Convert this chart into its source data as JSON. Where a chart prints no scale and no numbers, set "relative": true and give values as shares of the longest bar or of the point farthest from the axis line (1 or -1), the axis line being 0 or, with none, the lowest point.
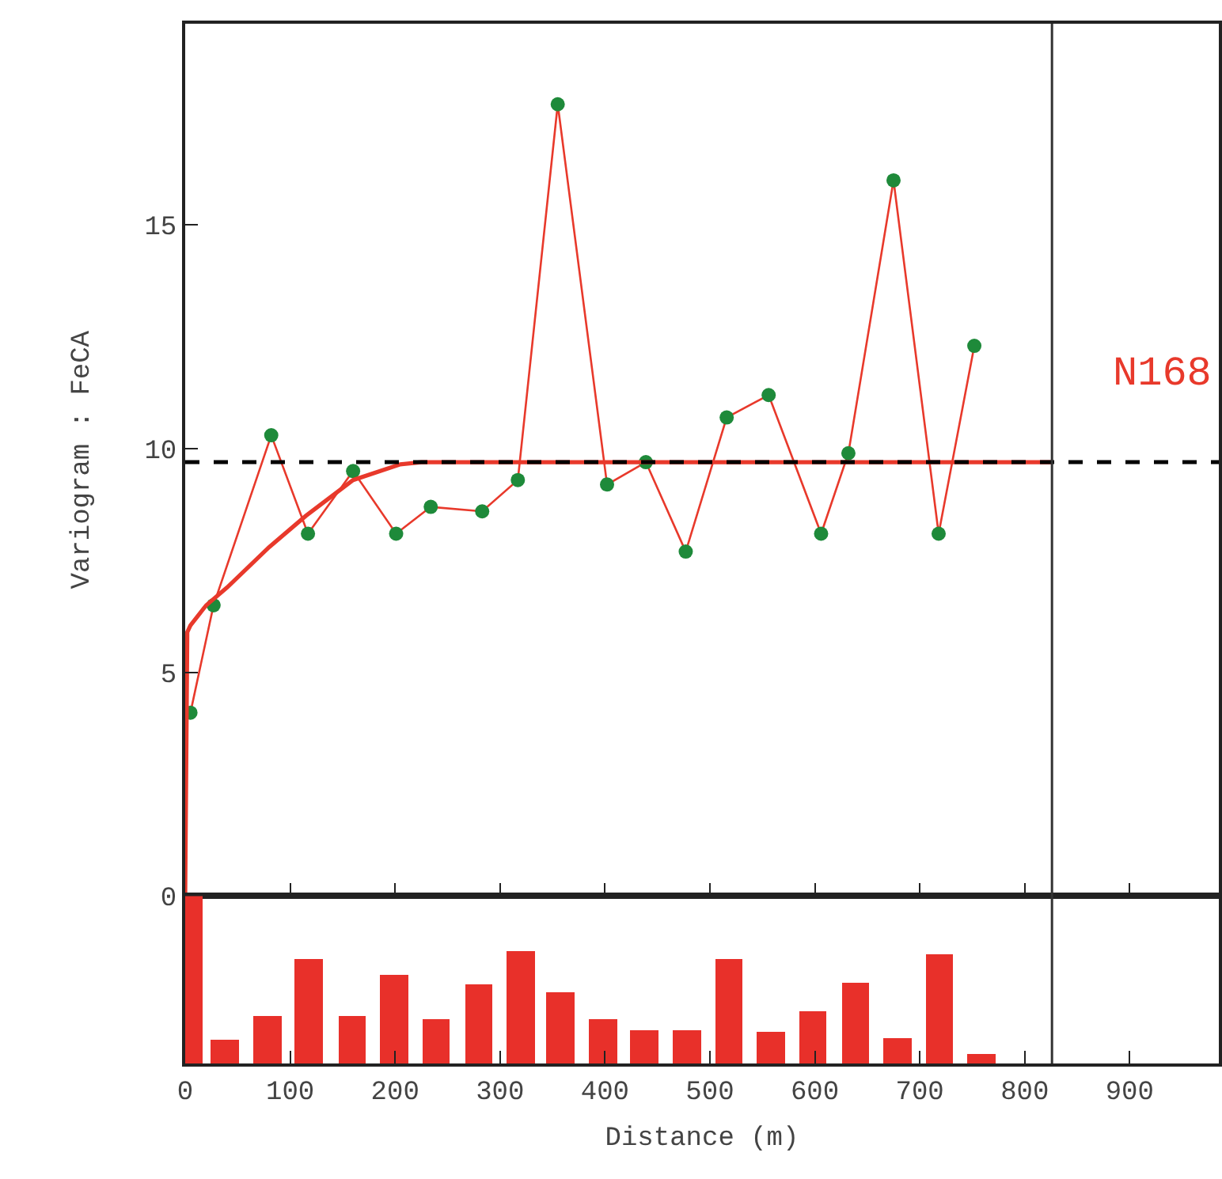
{
  "chart_data": [
    {
      "type": "line",
      "ylabel": "Variogram : FeCA",
      "xlim": [
        0,
        985
      ],
      "xticks": [
        0,
        100,
        200,
        300,
        400,
        500,
        600,
        700,
        800,
        900
      ],
      "ylim": [
        0,
        19.5
      ],
      "yticks": [
        0,
        5,
        10,
        15
      ],
      "tick_labels": "y",
      "grid": false,
      "series": [
        {
          "type": "line",
          "color": "#e8392b",
          "marker": "circle",
          "x": [
            5,
            27,
            82,
            117,
            160,
            201,
            234,
            283,
            317,
            355,
            402,
            439,
            477,
            516,
            556,
            606,
            632,
            675,
            718,
            752
          ],
          "values": [
            4.1,
            6.5,
            10.3,
            8.1,
            9.5,
            8.1,
            8.7,
            8.6,
            9.3,
            17.7,
            9.2,
            9.7,
            7.7,
            10.7,
            11.2,
            8.1,
            9.9,
            16.0,
            8.1,
            12.3
          ],
          "colors": [
            "#1e8a3a",
            "#1e8a3a",
            "#1e8a3a",
            "#1e8a3a",
            "#1e8a3a",
            "#1e8a3a",
            "#1e8a3a",
            "#1e8a3a",
            "#1e8a3a",
            "#1e8a3a",
            "#1e8a3a",
            "#1e8a3a",
            "#1e8a3a",
            "#1e8a3a",
            "#1e8a3a",
            "#1e8a3a",
            "#1e8a3a",
            "#1e8a3a",
            "#1e8a3a",
            "#1e8a3a"
          ]
        },
        {
          "type": "line",
          "color": "#e8392b",
          "marker": "none",
          "x": [
            0,
            2,
            5,
            20,
            40,
            80,
            115,
            160,
            205,
            225,
            826
          ],
          "values": [
            0,
            5.9,
            6.05,
            6.5,
            6.9,
            7.8,
            8.5,
            9.3,
            9.65,
            9.7,
            9.7
          ]
        }
      ],
      "ref_lines": [
        {
          "axis": "y",
          "value": 9.7,
          "color": "#000000",
          "line_style": "dashed"
        },
        {
          "axis": "x",
          "value": 826,
          "color": "#333333",
          "line_style": "solid"
        }
      ],
      "annotations": [
        "N168"
      ]
    },
    {
      "type": "bar",
      "relative": true,
      "xlabel": "Distance (m)",
      "xlim": [
        0,
        985
      ],
      "xticks": [
        0,
        100,
        200,
        300,
        400,
        500,
        600,
        700,
        800,
        900
      ],
      "tick_labels": "x",
      "grid": false,
      "color": "#e8302a",
      "x": [
        8,
        38,
        78,
        118,
        159,
        199,
        239,
        280,
        320,
        357,
        398,
        437,
        478,
        518,
        558,
        598,
        639,
        679,
        719,
        759
      ],
      "values": [
        1.0,
        0.14,
        0.28,
        0.62,
        0.28,
        0.53,
        0.26,
        0.47,
        0.67,
        0.42,
        0.26,
        0.2,
        0.2,
        0.62,
        0.19,
        0.31,
        0.48,
        0.15,
        0.65,
        0.05
      ]
    }
  ]
}
